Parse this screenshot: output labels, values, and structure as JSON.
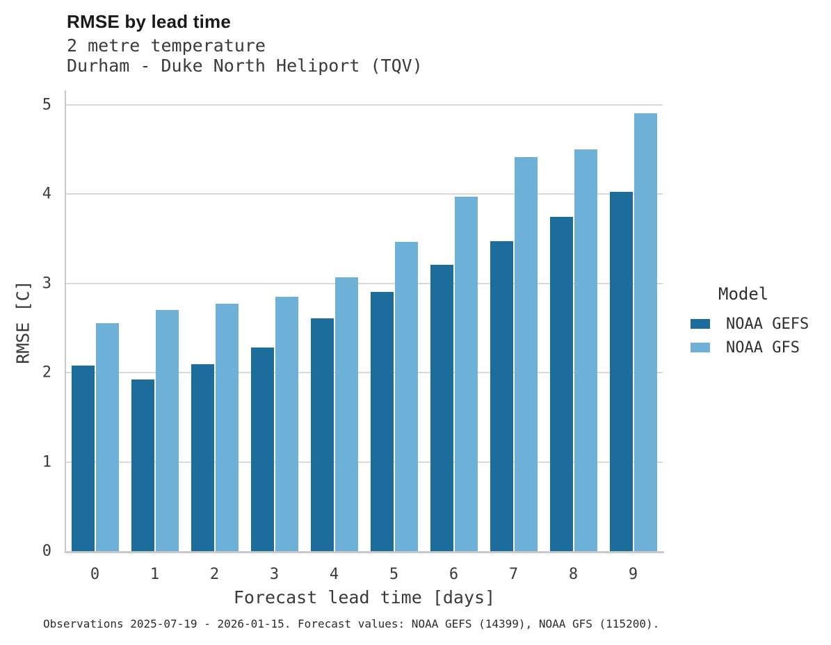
{
  "chart_data": {
    "type": "bar",
    "title": "RMSE by lead time",
    "subtitle": [
      "2 metre temperature",
      "Durham - Duke North Heliport (TQV)"
    ],
    "categories": [
      "0",
      "1",
      "2",
      "3",
      "4",
      "5",
      "6",
      "7",
      "8",
      "9"
    ],
    "series": [
      {
        "name": "NOAA GEFS",
        "color": "#1c6c9c",
        "values": [
          2.08,
          1.92,
          2.09,
          2.28,
          2.61,
          2.9,
          3.21,
          3.47,
          3.74,
          4.02
        ]
      },
      {
        "name": "NOAA GFS",
        "color": "#6eb1d8",
        "values": [
          2.55,
          2.7,
          2.77,
          2.85,
          3.07,
          3.46,
          3.97,
          4.41,
          4.5,
          4.9
        ]
      }
    ],
    "xlabel": "Forecast lead time [days]",
    "ylabel": "RMSE [C]",
    "ylim": [
      0,
      5.16
    ],
    "yticks": [
      0,
      1,
      2,
      3,
      4,
      5
    ],
    "grid": "horizontal",
    "legend_title": "Model",
    "legend_position": "right",
    "caption": "Observations 2025-07-19 - 2026-01-15. Forecast values: NOAA GEFS (14399), NOAA GFS (115200)."
  },
  "colors": {
    "gridline": "#d9d9d9",
    "spine": "#c9c9c9",
    "background": "#ffffff"
  }
}
